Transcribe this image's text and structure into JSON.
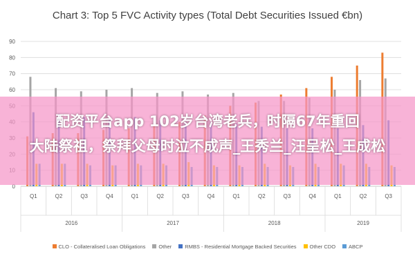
{
  "chart_data": {
    "type": "bar",
    "title": "Chart 3: Top 5 FVC Activity types (Total Debt Securities Issued €bn)",
    "ylim": [
      0,
      90
    ],
    "yticks": [
      0,
      10,
      20,
      30,
      40,
      50,
      60,
      70,
      80,
      90
    ],
    "grid": true,
    "legend_position": "bottom",
    "categories": [
      "Q1",
      "Q2",
      "Q3",
      "Q4",
      "Q1",
      "Q2",
      "Q3",
      "Q4",
      "Q1",
      "Q2",
      "Q3",
      "Q4",
      "Q1",
      "Q2",
      "Q3"
    ],
    "years": [
      {
        "label": "2016",
        "start": 0,
        "end": 3
      },
      {
        "label": "2017",
        "start": 4,
        "end": 7
      },
      {
        "label": "2018",
        "start": 8,
        "end": 11
      },
      {
        "label": "2019",
        "start": 12,
        "end": 14
      }
    ],
    "series": [
      {
        "name": "CLO - Collateralised Loan Obligations",
        "color": "#ED7D31",
        "values": [
          31,
          33,
          33,
          35,
          36,
          38,
          40,
          44,
          50,
          52,
          57,
          61,
          68,
          75,
          83
        ]
      },
      {
        "name": "Other",
        "color": "#A5A5A5",
        "values": [
          68,
          61,
          59,
          60,
          61,
          58,
          59,
          57,
          58,
          53,
          53,
          55,
          60,
          66,
          67
        ]
      },
      {
        "name": "RMBS - Residential Mortgage Backed Securities",
        "color": "#4472C4",
        "values": [
          46,
          45,
          43,
          42,
          43,
          41,
          40,
          40,
          39,
          37,
          36,
          36,
          36,
          38,
          41
        ]
      },
      {
        "name": "Other CDO",
        "color": "#FFC000",
        "values": [
          14,
          14,
          14,
          13,
          14,
          14,
          15,
          13,
          13,
          14,
          13,
          14,
          14,
          14,
          13
        ]
      },
      {
        "name": "ABCP",
        "color": "#5B9BD5",
        "values": [
          14,
          14,
          13,
          13,
          13,
          13,
          12,
          12,
          12,
          12,
          12,
          12,
          13,
          12,
          12
        ]
      }
    ]
  },
  "overlay": {
    "line1": "配资平台app 102岁台湾老兵，时隔67年重回",
    "line2": "大陆祭祖，祭拜父母时泣不成声_王秀兰_汪呈松_王成松"
  }
}
